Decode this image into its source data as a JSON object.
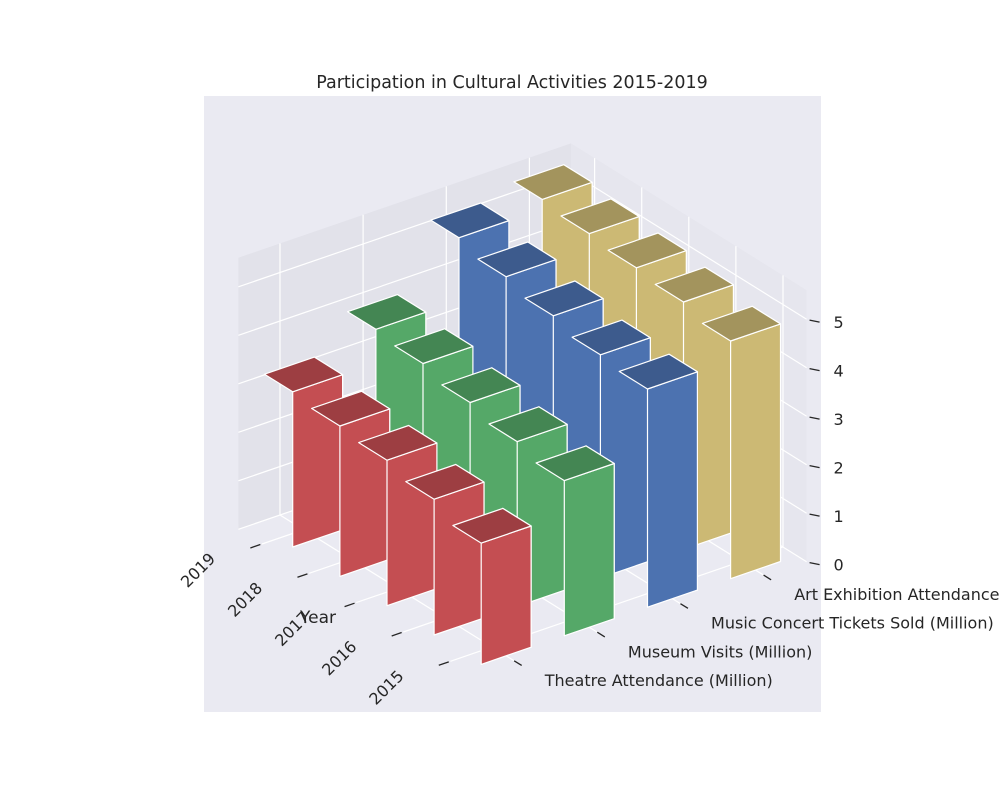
{
  "chart_data": {
    "type": "bar3d",
    "title": "Participation in Cultural Activities 2015-2019",
    "xlabel": "Year",
    "ylabel": "",
    "zlabel": "",
    "x_categories": [
      "2015",
      "2016",
      "2017",
      "2018",
      "2019"
    ],
    "y_categories": [
      "Theatre Attendance (Million)",
      "Museum Visits (Million)",
      "Music Concert Tickets Sold (Million)",
      "Art Exhibition Attendance (Million)"
    ],
    "series": [
      {
        "name": "Theatre Attendance (Million)",
        "color": "#c44e52",
        "values": [
          2.5,
          2.8,
          3.0,
          3.1,
          3.2
        ]
      },
      {
        "name": "Museum Visits (Million)",
        "color": "#55a868",
        "values": [
          3.2,
          3.4,
          3.6,
          3.8,
          3.9
        ]
      },
      {
        "name": "Music Concert Tickets Sold (Million)",
        "color": "#4c72b0",
        "values": [
          4.5,
          4.6,
          4.8,
          5.0,
          5.2
        ]
      },
      {
        "name": "Art Exhibition Attendance (Million)",
        "color": "#ccb974",
        "values": [
          4.9,
          5.1,
          5.2,
          5.3,
          5.4
        ]
      }
    ],
    "z_ticks": [
      "0",
      "1",
      "2",
      "3",
      "4",
      "5"
    ],
    "zlim": [
      0,
      5.6
    ],
    "grid": true,
    "background": "#eaeaf2"
  }
}
